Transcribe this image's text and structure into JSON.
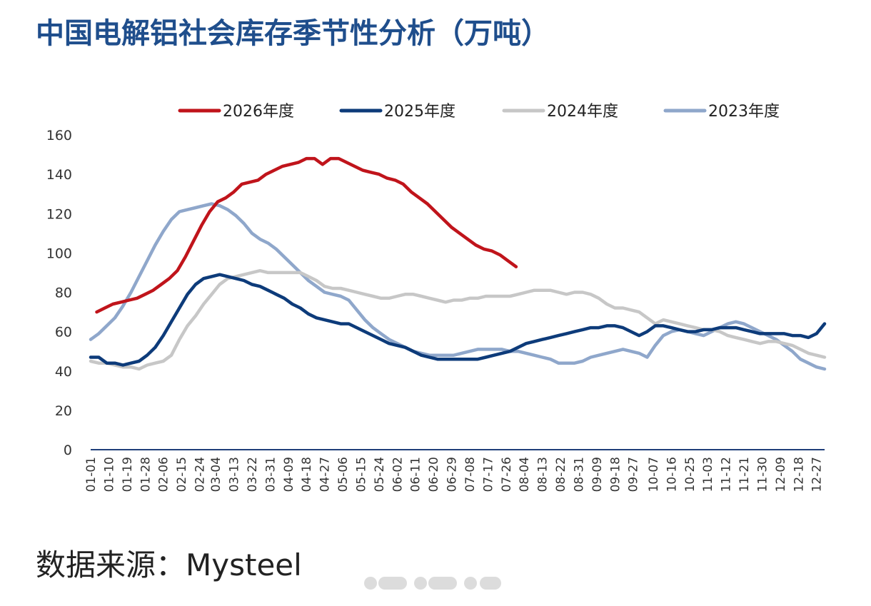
{
  "title": "中国电解铝社会库存季节性分析（万吨）",
  "source": "数据来源：Mysteel",
  "chart_data": {
    "type": "line",
    "title": "中国电解铝社会库存季节性分析（万吨）",
    "xlabel": "",
    "ylabel": "",
    "ylim": [
      0,
      160
    ],
    "yticks": [
      0,
      20,
      40,
      60,
      80,
      100,
      120,
      140,
      160
    ],
    "grid": false,
    "legend_position": "top",
    "x_ticks": [
      "01-01",
      "01-10",
      "01-19",
      "01-28",
      "02-06",
      "02-15",
      "02-24",
      "03-04",
      "03-13",
      "03-22",
      "03-31",
      "04-09",
      "04-18",
      "04-27",
      "05-06",
      "05-15",
      "05-24",
      "06-02",
      "06-11",
      "06-20",
      "06-29",
      "07-08",
      "07-17",
      "07-26",
      "08-04",
      "08-13",
      "08-22",
      "08-31",
      "09-09",
      "09-18",
      "09-27",
      "10-07",
      "10-16",
      "10-25",
      "11-03",
      "11-12",
      "11-21",
      "11-30",
      "12-09",
      "12-18",
      "12-27"
    ],
    "series": [
      {
        "name": "2026年度",
        "color": "#c0141b",
        "x": [
          "01-04",
          "01-08",
          "01-12",
          "01-16",
          "01-20",
          "01-24",
          "01-28",
          "02-01",
          "02-05",
          "02-09",
          "02-13",
          "02-17",
          "02-21",
          "02-25",
          "03-01",
          "03-05",
          "03-09",
          "03-13",
          "03-17",
          "03-21",
          "03-25",
          "03-29",
          "04-02",
          "04-06",
          "04-10",
          "04-14",
          "04-18",
          "04-22",
          "04-26",
          "04-30",
          "05-04",
          "05-08",
          "05-12",
          "05-16",
          "05-20",
          "05-24",
          "05-28",
          "06-01",
          "06-05",
          "06-09",
          "06-13",
          "06-17",
          "06-21",
          "06-25",
          "06-29",
          "07-03",
          "07-07",
          "07-11",
          "07-15",
          "07-19",
          "07-23",
          "07-27",
          "07-31"
        ],
        "y": [
          70,
          72,
          74,
          75,
          76,
          77,
          79,
          81,
          84,
          87,
          91,
          98,
          106,
          114,
          121,
          126,
          128,
          131,
          135,
          136,
          137,
          140,
          142,
          144,
          145,
          146,
          148,
          148,
          145,
          148,
          148,
          146,
          144,
          142,
          141,
          140,
          138,
          137,
          135,
          131,
          128,
          125,
          121,
          117,
          113,
          110,
          107,
          104,
          102,
          101,
          99,
          96,
          93
        ]
      },
      {
        "name": "2025年度",
        "color": "#0d3b7a",
        "x": [
          "01-01",
          "01-05",
          "01-09",
          "01-13",
          "01-17",
          "01-21",
          "01-25",
          "01-29",
          "02-02",
          "02-06",
          "02-10",
          "02-14",
          "02-18",
          "02-22",
          "02-26",
          "03-02",
          "03-06",
          "03-10",
          "03-14",
          "03-18",
          "03-22",
          "03-26",
          "03-30",
          "04-03",
          "04-07",
          "04-11",
          "04-15",
          "04-19",
          "04-23",
          "04-27",
          "05-01",
          "05-05",
          "05-09",
          "05-13",
          "05-17",
          "05-21",
          "05-25",
          "05-29",
          "06-02",
          "06-06",
          "06-10",
          "06-14",
          "06-18",
          "06-22",
          "06-26",
          "06-30",
          "07-04",
          "07-08",
          "07-12",
          "07-16",
          "07-20",
          "07-24",
          "07-28",
          "08-01",
          "08-05",
          "08-09",
          "08-13",
          "08-17",
          "08-21",
          "08-25",
          "08-29",
          "09-02",
          "09-06",
          "09-10",
          "09-14",
          "09-18",
          "09-22",
          "09-26",
          "09-30",
          "10-04",
          "10-08",
          "10-12",
          "10-16",
          "10-20",
          "10-24",
          "10-28",
          "11-01",
          "11-05",
          "11-09",
          "11-13",
          "11-17",
          "11-21",
          "11-25",
          "11-29",
          "12-03",
          "12-07",
          "12-11",
          "12-15",
          "12-19",
          "12-23",
          "12-27",
          "12-31"
        ],
        "y": [
          47,
          47,
          44,
          44,
          43,
          44,
          45,
          48,
          52,
          58,
          65,
          72,
          79,
          84,
          87,
          88,
          89,
          88,
          87,
          86,
          84,
          83,
          81,
          79,
          77,
          74,
          72,
          69,
          67,
          66,
          65,
          64,
          64,
          62,
          60,
          58,
          56,
          54,
          53,
          52,
          50,
          48,
          47,
          46,
          46,
          46,
          46,
          46,
          46,
          47,
          48,
          49,
          50,
          52,
          54,
          55,
          56,
          57,
          58,
          59,
          60,
          61,
          62,
          62,
          63,
          63,
          62,
          60,
          58,
          60,
          63,
          63,
          62,
          61,
          60,
          60,
          61,
          61,
          62,
          62,
          62,
          61,
          60,
          59,
          59,
          59,
          59,
          58,
          58,
          57,
          59,
          64
        ]
      },
      {
        "name": "2024年度",
        "color": "#c7c7c7",
        "x": [
          "01-01",
          "01-05",
          "01-09",
          "01-13",
          "01-17",
          "01-21",
          "01-25",
          "01-29",
          "02-02",
          "02-06",
          "02-10",
          "02-14",
          "02-18",
          "02-22",
          "02-26",
          "03-02",
          "03-06",
          "03-10",
          "03-14",
          "03-18",
          "03-22",
          "03-26",
          "03-30",
          "04-03",
          "04-07",
          "04-11",
          "04-15",
          "04-19",
          "04-23",
          "04-27",
          "05-01",
          "05-05",
          "05-09",
          "05-13",
          "05-17",
          "05-21",
          "05-25",
          "05-29",
          "06-02",
          "06-06",
          "06-10",
          "06-14",
          "06-18",
          "06-22",
          "06-26",
          "06-30",
          "07-04",
          "07-08",
          "07-12",
          "07-16",
          "07-20",
          "07-24",
          "07-28",
          "08-01",
          "08-05",
          "08-09",
          "08-13",
          "08-17",
          "08-21",
          "08-25",
          "08-29",
          "09-02",
          "09-06",
          "09-10",
          "09-14",
          "09-18",
          "09-22",
          "09-26",
          "09-30",
          "10-04",
          "10-08",
          "10-12",
          "10-16",
          "10-20",
          "10-24",
          "10-28",
          "11-01",
          "11-05",
          "11-09",
          "11-13",
          "11-17",
          "11-21",
          "11-25",
          "11-29",
          "12-03",
          "12-07",
          "12-11",
          "12-15",
          "12-19",
          "12-23",
          "12-27",
          "12-31"
        ],
        "y": [
          45,
          44,
          44,
          43,
          42,
          42,
          41,
          43,
          44,
          45,
          48,
          56,
          63,
          68,
          74,
          79,
          84,
          87,
          88,
          89,
          90,
          91,
          90,
          90,
          90,
          90,
          90,
          88,
          86,
          83,
          82,
          82,
          81,
          80,
          79,
          78,
          77,
          77,
          78,
          79,
          79,
          78,
          77,
          76,
          75,
          76,
          76,
          77,
          77,
          78,
          78,
          78,
          78,
          79,
          80,
          81,
          81,
          81,
          80,
          79,
          80,
          80,
          79,
          77,
          74,
          72,
          72,
          71,
          70,
          67,
          64,
          66,
          65,
          64,
          63,
          62,
          61,
          61,
          60,
          58,
          57,
          56,
          55,
          54,
          55,
          55,
          54,
          53,
          51,
          49,
          48,
          47
        ]
      },
      {
        "name": "2023年度",
        "color": "#8fa7cb",
        "x": [
          "01-01",
          "01-05",
          "01-09",
          "01-13",
          "01-17",
          "01-21",
          "01-25",
          "01-29",
          "02-02",
          "02-06",
          "02-10",
          "02-14",
          "02-18",
          "02-22",
          "02-26",
          "03-02",
          "03-06",
          "03-10",
          "03-14",
          "03-18",
          "03-22",
          "03-26",
          "03-30",
          "04-03",
          "04-07",
          "04-11",
          "04-15",
          "04-19",
          "04-23",
          "04-27",
          "05-01",
          "05-05",
          "05-09",
          "05-13",
          "05-17",
          "05-21",
          "05-25",
          "05-29",
          "06-02",
          "06-06",
          "06-10",
          "06-14",
          "06-18",
          "06-22",
          "06-26",
          "06-30",
          "07-04",
          "07-08",
          "07-12",
          "07-16",
          "07-20",
          "07-24",
          "07-28",
          "08-01",
          "08-05",
          "08-09",
          "08-13",
          "08-17",
          "08-21",
          "08-25",
          "08-29",
          "09-02",
          "09-06",
          "09-10",
          "09-14",
          "09-18",
          "09-22",
          "09-26",
          "09-30",
          "10-04",
          "10-08",
          "10-12",
          "10-16",
          "10-20",
          "10-24",
          "10-28",
          "11-01",
          "11-05",
          "11-09",
          "11-13",
          "11-17",
          "11-21",
          "11-25",
          "11-29",
          "12-03",
          "12-07",
          "12-11",
          "12-15",
          "12-19",
          "12-23",
          "12-27",
          "12-31"
        ],
        "y": [
          56,
          59,
          63,
          67,
          73,
          80,
          88,
          96,
          104,
          111,
          117,
          121,
          122,
          123,
          124,
          125,
          124,
          122,
          119,
          115,
          110,
          107,
          105,
          102,
          98,
          94,
          90,
          86,
          83,
          80,
          79,
          78,
          76,
          71,
          66,
          62,
          59,
          56,
          54,
          52,
          50,
          49,
          48,
          48,
          48,
          48,
          49,
          50,
          51,
          51,
          51,
          51,
          50,
          50,
          49,
          48,
          47,
          46,
          44,
          44,
          44,
          45,
          47,
          48,
          49,
          50,
          51,
          50,
          49,
          47,
          53,
          58,
          60,
          61,
          60,
          59,
          58,
          60,
          62,
          64,
          65,
          64,
          62,
          60,
          58,
          56,
          53,
          50,
          46,
          44,
          42,
          41
        ]
      }
    ]
  }
}
